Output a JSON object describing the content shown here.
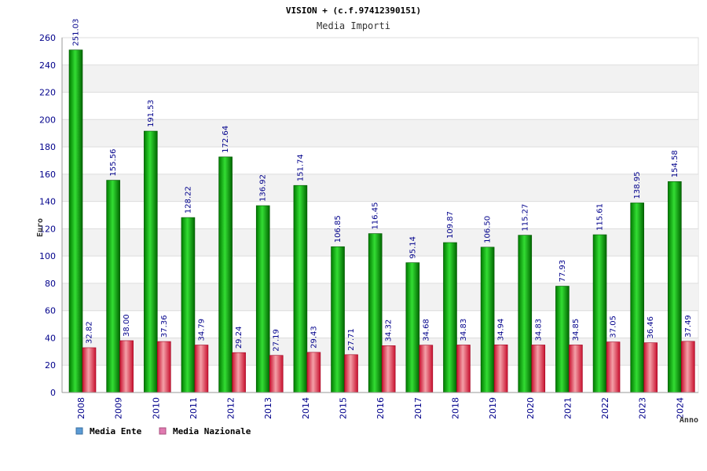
{
  "chart_data": {
    "type": "bar",
    "title": "VISION + (c.f.97412390151)",
    "subtitle": "Media Importi",
    "xlabel": "Anno",
    "ylabel": "Euro",
    "ylim": [
      0,
      260
    ],
    "ytick_step": 20,
    "grid": "horizontal bands",
    "legend_position": "bottom-left",
    "categories": [
      "2008",
      "2009",
      "2010",
      "2011",
      "2012",
      "2013",
      "2014",
      "2015",
      "2016",
      "2017",
      "2018",
      "2019",
      "2020",
      "2021",
      "2022",
      "2023",
      "2024"
    ],
    "series": [
      {
        "name": "Media Ente",
        "legend_color": "#5b9bd5",
        "bar_color": "#11aa11",
        "values": [
          251.03,
          155.56,
          191.53,
          128.22,
          172.64,
          136.92,
          151.74,
          106.85,
          116.45,
          95.14,
          109.87,
          106.5,
          115.27,
          77.93,
          115.61,
          138.95,
          154.58
        ],
        "labels": [
          "251.03",
          "155.56",
          "191.53",
          "128.22",
          "172.64",
          "136.92",
          "151.74",
          "106.85",
          "116.45",
          "95.14",
          "109.87",
          "106.50",
          "115.27",
          "77.93",
          "115.61",
          "138.95",
          "154.58"
        ]
      },
      {
        "name": "Media Nazionale",
        "legend_color": "#e07ab0",
        "bar_color": "#e03a48",
        "values": [
          32.82,
          38.0,
          37.36,
          34.79,
          29.24,
          27.19,
          29.43,
          27.71,
          34.32,
          34.68,
          34.83,
          34.94,
          34.83,
          34.85,
          37.05,
          36.46,
          37.49
        ],
        "labels": [
          "32.82",
          "38.00",
          "37.36",
          "34.79",
          "29.24",
          "27.19",
          "29.43",
          "27.71",
          "34.32",
          "34.68",
          "34.83",
          "34.94",
          "34.83",
          "34.85",
          "37.05",
          "36.46",
          "37.49"
        ]
      }
    ]
  }
}
